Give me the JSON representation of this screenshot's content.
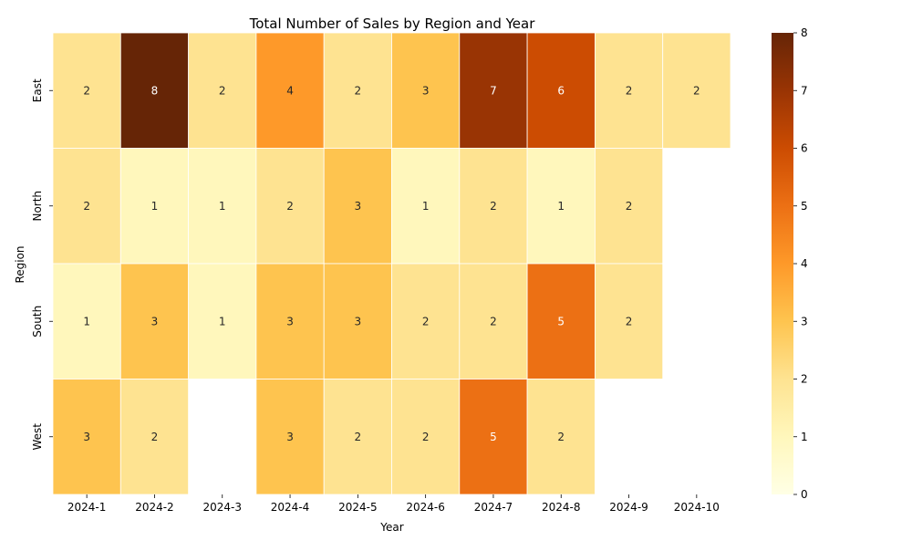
{
  "chart_data": {
    "type": "heatmap",
    "title": "Total Number of Sales by Region and Year",
    "xlabel": "Year",
    "ylabel": "Region",
    "x_categories": [
      "2024-1",
      "2024-2",
      "2024-3",
      "2024-4",
      "2024-5",
      "2024-6",
      "2024-7",
      "2024-8",
      "2024-9",
      "2024-10"
    ],
    "y_categories": [
      "East",
      "North",
      "South",
      "West"
    ],
    "values": [
      [
        2,
        8,
        2,
        4,
        2,
        3,
        7,
        6,
        2,
        2
      ],
      [
        2,
        1,
        1,
        2,
        3,
        1,
        2,
        1,
        2,
        null
      ],
      [
        1,
        3,
        1,
        3,
        3,
        2,
        2,
        5,
        2,
        null
      ],
      [
        3,
        2,
        null,
        3,
        2,
        2,
        5,
        2,
        null,
        null
      ]
    ],
    "value_range": [
      0,
      8
    ],
    "colorbar_ticks": [
      0,
      1,
      2,
      3,
      4,
      5,
      6,
      7,
      8
    ],
    "colormap": "YlOrBr",
    "colormap_stops": [
      "#ffffe5",
      "#fff7bc",
      "#fee391",
      "#fec44f",
      "#fe9929",
      "#ec7014",
      "#cc4c02",
      "#993404",
      "#662506"
    ]
  }
}
